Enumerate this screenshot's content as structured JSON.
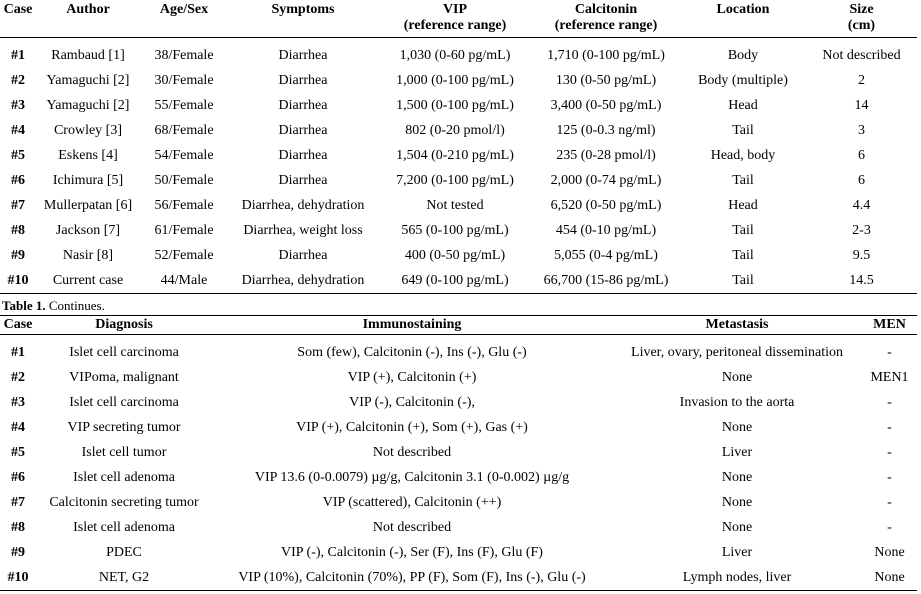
{
  "table1": {
    "headers": [
      {
        "l1": "Case",
        "l2": ""
      },
      {
        "l1": "Author",
        "l2": ""
      },
      {
        "l1": "Age/Sex",
        "l2": ""
      },
      {
        "l1": "Symptoms",
        "l2": ""
      },
      {
        "l1": "VIP",
        "l2": "(reference range)"
      },
      {
        "l1": "Calcitonin",
        "l2": "(reference range)"
      },
      {
        "l1": "Location",
        "l2": ""
      },
      {
        "l1": "Size",
        "l2": "(cm)"
      }
    ],
    "rows": [
      [
        "#1",
        "Rambaud [1]",
        "38/Female",
        "Diarrhea",
        "1,030 (0-60 pg/mL)",
        "1,710 (0-100 pg/mL)",
        "Body",
        "Not described"
      ],
      [
        "#2",
        "Yamaguchi [2]",
        "30/Female",
        "Diarrhea",
        "1,000 (0-100 pg/mL)",
        "130 (0-50 pg/mL)",
        "Body (multiple)",
        "2"
      ],
      [
        "#3",
        "Yamaguchi [2]",
        "55/Female",
        "Diarrhea",
        "1,500 (0-100 pg/mL)",
        "3,400 (0-50 pg/mL)",
        "Head",
        "14"
      ],
      [
        "#4",
        "Crowley [3]",
        "68/Female",
        "Diarrhea",
        "802 (0-20 pmol/l)",
        "125 (0-0.3 ng/ml)",
        "Tail",
        "3"
      ],
      [
        "#5",
        "Eskens [4]",
        "54/Female",
        "Diarrhea",
        "1,504 (0-210 pg/mL)",
        "235 (0-28 pmol/l)",
        "Head, body",
        "6"
      ],
      [
        "#6",
        "Ichimura [5]",
        "50/Female",
        "Diarrhea",
        "7,200 (0-100 pg/mL)",
        "2,000 (0-74 pg/mL)",
        "Tail",
        "6"
      ],
      [
        "#7",
        "Mullerpatan [6]",
        "56/Female",
        "Diarrhea, dehydration",
        "Not tested",
        "6,520 (0-50 pg/mL)",
        "Head",
        "4.4"
      ],
      [
        "#8",
        "Jackson [7]",
        "61/Female",
        "Diarrhea, weight loss",
        "565 (0-100 pg/mL)",
        "454 (0-10 pg/mL)",
        "Tail",
        "2-3"
      ],
      [
        "#9",
        "Nasir [8]",
        "52/Female",
        "Diarrhea",
        "400 (0-50 pg/mL)",
        "5,055 (0-4 pg/mL)",
        "Tail",
        "9.5"
      ],
      [
        "#10",
        "Current case",
        "44/Male",
        "Diarrhea, dehydration",
        "649 (0-100 pg/mL)",
        "66,700 (15-86 pg/mL)",
        "Tail",
        "14.5"
      ]
    ]
  },
  "caption": {
    "label": "Table 1.",
    "text": " Continues."
  },
  "table2": {
    "headers": [
      "Case",
      "Diagnosis",
      "Immunostaining",
      "Metastasis",
      "MEN"
    ],
    "rows": [
      [
        "#1",
        "Islet cell carcinoma",
        "Som (few), Calcitonin (-), Ins (-), Glu (-)",
        "Liver, ovary, peritoneal dissemination",
        "-"
      ],
      [
        "#2",
        "VIPoma, malignant",
        "VIP (+), Calcitonin (+)",
        "None",
        "MEN1"
      ],
      [
        "#3",
        "Islet cell carcinoma",
        "VIP (-), Calcitonin (-),",
        "Invasion to the aorta",
        "-"
      ],
      [
        "#4",
        "VIP secreting tumor",
        "VIP (+), Calcitonin (+), Som (+), Gas (+)",
        "None",
        "-"
      ],
      [
        "#5",
        "Islet cell tumor",
        "Not described",
        "Liver",
        "-"
      ],
      [
        "#6",
        "Islet cell adenoma",
        "VIP 13.6 (0-0.0079) µg/g, Calcitonin 3.1 (0-0.002) µg/g",
        "None",
        "-"
      ],
      [
        "#7",
        "Calcitonin secreting tumor",
        "VIP (scattered), Calcitonin (++)",
        "None",
        "-"
      ],
      [
        "#8",
        "Islet cell adenoma",
        "Not described",
        "None",
        "-"
      ],
      [
        "#9",
        "PDEC",
        "VIP (-), Calcitonin (-), Ser (F), Ins (F), Glu (F)",
        "Liver",
        "None"
      ],
      [
        "#10",
        "NET, G2",
        "VIP (10%), Calcitonin (70%), PP (F), Som (F), Ins (-), Glu (-)",
        "Lymph nodes, liver",
        "None"
      ]
    ]
  }
}
